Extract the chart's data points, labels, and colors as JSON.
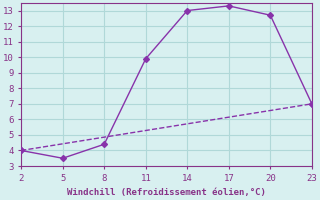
{
  "xlabel": "Windchill (Refroidissement éolien,°C)",
  "line1_x": [
    2,
    5,
    8,
    11,
    14,
    17,
    20,
    23
  ],
  "line1_y": [
    4.0,
    3.5,
    4.4,
    9.9,
    13.0,
    13.3,
    12.7,
    7.0
  ],
  "line2_x": [
    2,
    23
  ],
  "line2_y": [
    4.0,
    7.0
  ],
  "line_color": "#8833aa",
  "marker": "D",
  "marker_size": 3,
  "xlim": [
    2,
    23
  ],
  "ylim": [
    3,
    13.5
  ],
  "xticks": [
    2,
    5,
    8,
    11,
    14,
    17,
    20,
    23
  ],
  "yticks": [
    3,
    4,
    5,
    6,
    7,
    8,
    9,
    10,
    11,
    12,
    13
  ],
  "bg_color": "#d8f0f0",
  "grid_color": "#b0d8d8",
  "tick_color": "#883388",
  "label_color": "#883388",
  "font": "monospace"
}
